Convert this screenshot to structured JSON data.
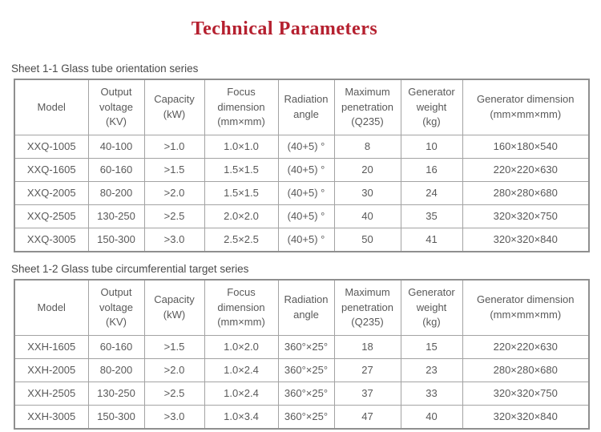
{
  "page": {
    "title": "Technical Parameters",
    "title_color": "#b5202f",
    "text_color": "#595959",
    "border_color": "#8f8f8f",
    "background_color": "#ffffff"
  },
  "tables": [
    {
      "caption": "Sheet 1-1 Glass tube orientation series",
      "headers": [
        "Model",
        "Output\nvoltage\n(KV)",
        "Capacity\n(kW)",
        "Focus\ndimension\n(mm×mm)",
        "Radiation\nangle",
        "Maximum\npenetration\n(Q235)",
        "Generator\nweight\n(kg)",
        "Generator dimension\n(mm×mm×mm)"
      ],
      "rows": [
        [
          "XXQ-1005",
          "40-100",
          ">1.0",
          "1.0×1.0",
          "(40+5) °",
          "8",
          "10",
          "160×180×540"
        ],
        [
          "XXQ-1605",
          "60-160",
          ">1.5",
          "1.5×1.5",
          "(40+5) °",
          "20",
          "16",
          "220×220×630"
        ],
        [
          "XXQ-2005",
          "80-200",
          ">2.0",
          "1.5×1.5",
          "(40+5) °",
          "30",
          "24",
          "280×280×680"
        ],
        [
          "XXQ-2505",
          "130-250",
          ">2.5",
          "2.0×2.0",
          "(40+5) °",
          "40",
          "35",
          "320×320×750"
        ],
        [
          "XXQ-3005",
          "150-300",
          ">3.0",
          "2.5×2.5",
          "(40+5) °",
          "50",
          "41",
          "320×320×840"
        ]
      ]
    },
    {
      "caption": "Sheet 1-2 Glass tube circumferential target series",
      "headers": [
        "Model",
        "Output\nvoltage\n(KV)",
        "Capacity\n(kW)",
        "Focus\ndimension\n(mm×mm)",
        "Radiation\nangle",
        "Maximum\npenetration\n(Q235)",
        "Generator\nweight\n(kg)",
        "Generator dimension\n(mm×mm×mm)"
      ],
      "rows": [
        [
          "XXH-1605",
          "60-160",
          ">1.5",
          "1.0×2.0",
          "360°×25°",
          "18",
          "15",
          "220×220×630"
        ],
        [
          "XXH-2005",
          "80-200",
          ">2.0",
          "1.0×2.4",
          "360°×25°",
          "27",
          "23",
          "280×280×680"
        ],
        [
          "XXH-2505",
          "130-250",
          ">2.5",
          "1.0×2.4",
          "360°×25°",
          "37",
          "33",
          "320×320×750"
        ],
        [
          "XXH-3005",
          "150-300",
          ">3.0",
          "1.0×3.4",
          "360°×25°",
          "47",
          "40",
          "320×320×840"
        ]
      ]
    }
  ]
}
